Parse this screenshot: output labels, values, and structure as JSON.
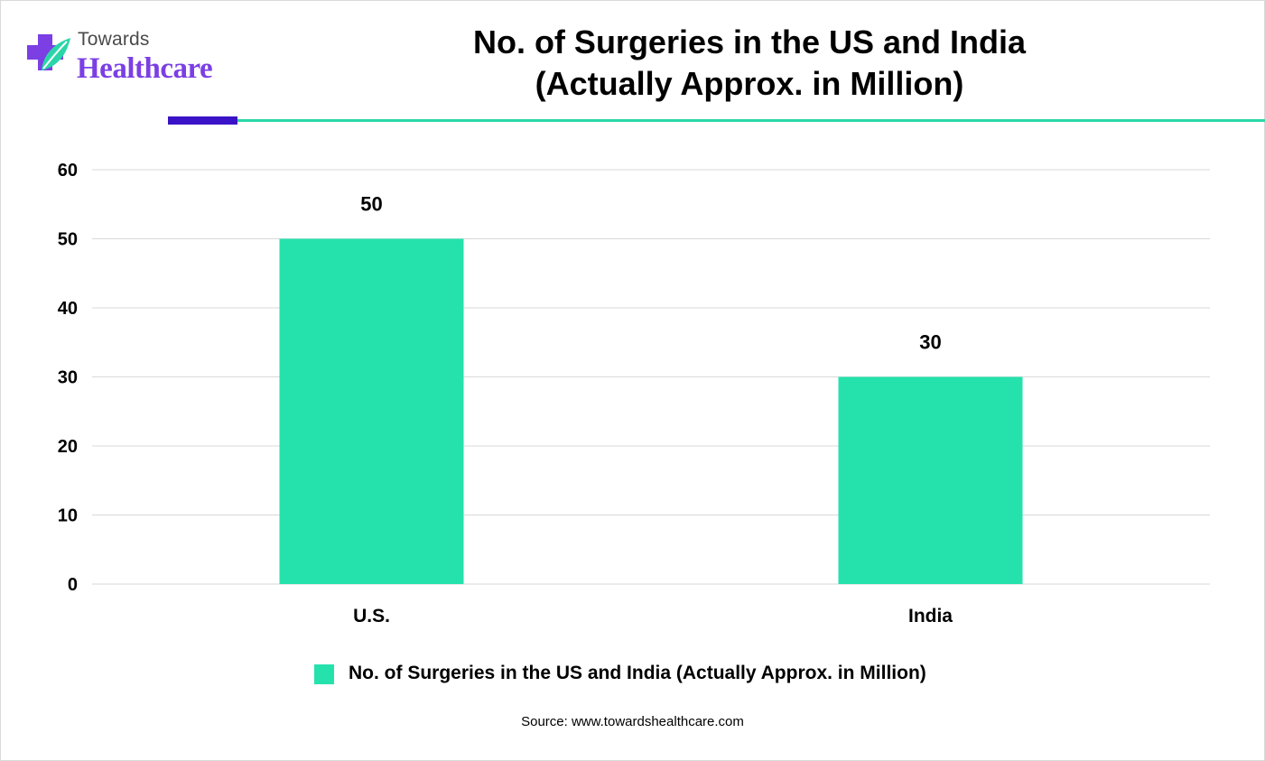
{
  "brand": {
    "top": "Towards",
    "main": "Healthcare"
  },
  "title": {
    "line1": "No. of Surgeries in the US and India",
    "line2": "(Actually Approx. in Million)"
  },
  "colors": {
    "bar": "#25e2ad",
    "accent_line": "#2ad6a8",
    "accent_block": "#3a12c7",
    "brand_purple": "#7b3fe4",
    "grid": "#d9d9d9"
  },
  "chart_data": {
    "type": "bar",
    "categories": [
      "U.S.",
      "India"
    ],
    "series": [
      {
        "name": "No. of Surgeries in the US and India (Actually Approx. in Million)",
        "values": [
          50,
          30
        ]
      }
    ],
    "data_labels": [
      "50",
      "30"
    ],
    "ylim": [
      0,
      60
    ],
    "yticks": [
      0,
      10,
      20,
      30,
      40,
      50,
      60
    ],
    "grid": true,
    "legend_position": "bottom"
  },
  "source": "Source: www.towardshealthcare.com"
}
